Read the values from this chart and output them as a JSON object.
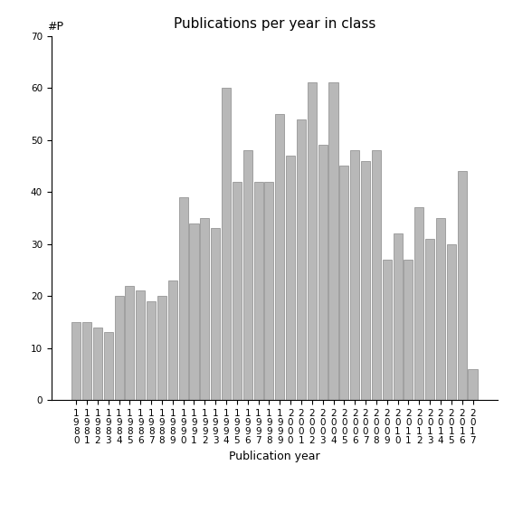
{
  "title": "Publications per year in class",
  "xlabel": "Publication year",
  "ylabel": "#P",
  "years": [
    1980,
    1981,
    1982,
    1983,
    1984,
    1985,
    1986,
    1987,
    1988,
    1989,
    1990,
    1991,
    1992,
    1993,
    1994,
    1995,
    1996,
    1997,
    1998,
    1999,
    2000,
    2001,
    2002,
    2003,
    2004,
    2005,
    2006,
    2007,
    2008,
    2009,
    2010,
    2011,
    2012,
    2013,
    2014,
    2015,
    2016,
    2017
  ],
  "values": [
    15,
    15,
    14,
    13,
    20,
    22,
    21,
    19,
    20,
    23,
    39,
    34,
    35,
    33,
    60,
    42,
    48,
    42,
    42,
    55,
    47,
    54,
    61,
    49,
    61,
    45,
    48,
    46,
    48,
    27,
    32,
    27,
    37,
    31,
    35,
    30,
    44,
    6
  ],
  "bar_color": "#b8b8b8",
  "bar_edgecolor": "#888888",
  "ylim": [
    0,
    70
  ],
  "yticks": [
    0,
    10,
    20,
    30,
    40,
    50,
    60,
    70
  ],
  "background_color": "#ffffff",
  "title_fontsize": 11,
  "label_fontsize": 9,
  "tick_fontsize": 7.5
}
